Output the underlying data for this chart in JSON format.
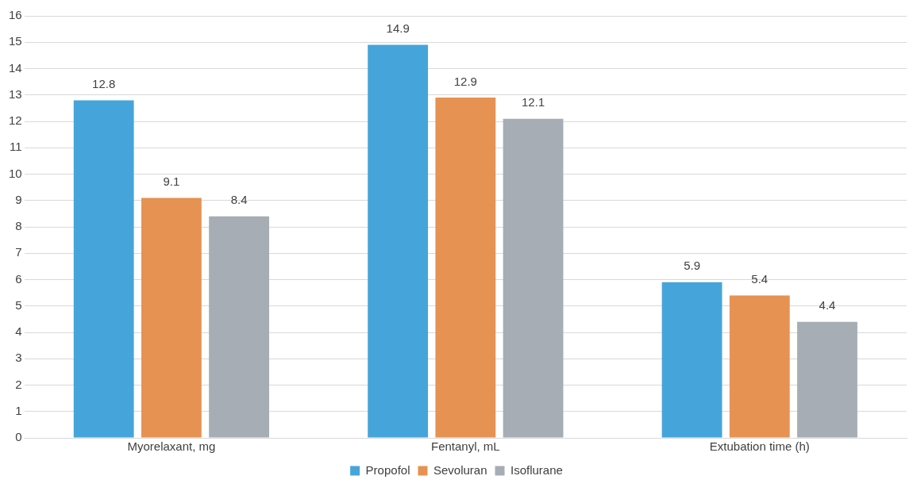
{
  "chart_data": {
    "type": "bar",
    "categories": [
      "Myorelaxant, mg",
      "Fentanyl, mL",
      "Extubation time (h)"
    ],
    "series": [
      {
        "name": "Propofol",
        "color": "#45a5da",
        "values": [
          12.8,
          14.9,
          5.9
        ]
      },
      {
        "name": "Sevoluran",
        "color": "#e69252",
        "values": [
          9.1,
          12.9,
          5.4
        ]
      },
      {
        "name": "Isoflurane",
        "color": "#a6adb4",
        "values": [
          8.4,
          12.1,
          4.4
        ]
      }
    ],
    "ylim": [
      0,
      16
    ],
    "yticks": [
      0,
      1,
      2,
      3,
      4,
      5,
      6,
      7,
      8,
      9,
      10,
      11,
      12,
      13,
      14,
      15,
      16
    ],
    "grid": "y",
    "legend": "bottom",
    "data_labels": true
  }
}
